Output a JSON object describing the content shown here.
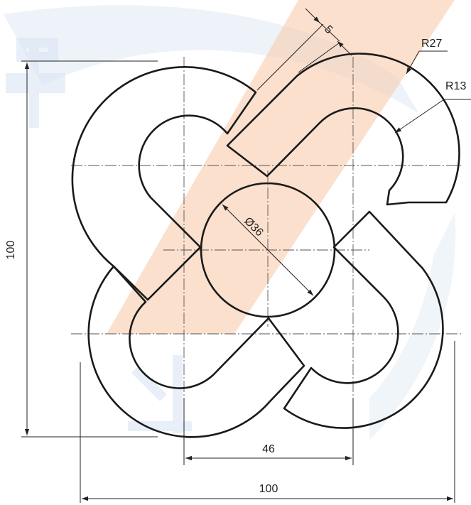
{
  "dimensions": {
    "overall_width": "100",
    "overall_height": "100",
    "center_spacing": "46",
    "circle_diameter": "Ø36",
    "slot_width": "5",
    "outer_radius": "R27",
    "inner_radius": "R13"
  },
  "colors": {
    "line": "#1a1a1a",
    "watermark_orange": "#f29a5e",
    "watermark_blue": "#c9d9ee"
  }
}
